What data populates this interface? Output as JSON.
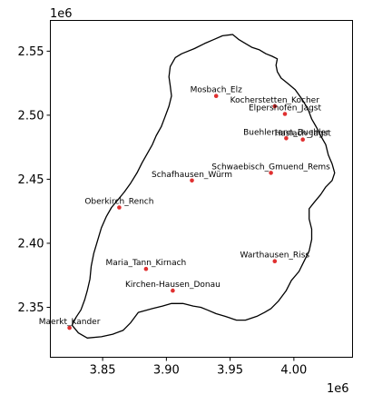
{
  "chart_data": {
    "type": "scatter",
    "title": "",
    "xlabel": "",
    "ylabel": "",
    "x_offset_label": "1e6",
    "y_offset_label": "1e6",
    "xlim": [
      3.809,
      4.046
    ],
    "ylim": [
      2.311,
      2.574
    ],
    "xticks": [
      3.85,
      3.9,
      3.95,
      4.0
    ],
    "xtick_labels": [
      "3.85",
      "3.90",
      "3.95",
      "4.00"
    ],
    "yticks": [
      2.35,
      2.4,
      2.45,
      2.5,
      2.55
    ],
    "ytick_labels": [
      "2.35",
      "2.40",
      "2.45",
      "2.50",
      "2.55"
    ],
    "grid": false,
    "point_color": "#e03030",
    "outline_color": "#000000",
    "points": [
      {
        "label": "Mosbach_Elz",
        "x": 3.939,
        "y": 2.515
      },
      {
        "label": "Kocherstetten_Kocher",
        "x": 3.985,
        "y": 2.507
      },
      {
        "label": "Elpershofen_Jagst",
        "x": 3.993,
        "y": 2.501
      },
      {
        "label": "Buehlertann_Buehler",
        "x": 3.994,
        "y": 2.482
      },
      {
        "label": "Haslach_Jagst",
        "x": 4.007,
        "y": 2.481
      },
      {
        "label": "Schwaebisch_Gmuend_Rems",
        "x": 3.982,
        "y": 2.455
      },
      {
        "label": "Schafhausen_Würm",
        "x": 3.92,
        "y": 2.449
      },
      {
        "label": "Oberkirch_Rench",
        "x": 3.863,
        "y": 2.428
      },
      {
        "label": "Warthausen_Riss",
        "x": 3.985,
        "y": 2.386
      },
      {
        "label": "Maria_Tann_Kirnach",
        "x": 3.884,
        "y": 2.38
      },
      {
        "label": "Kirchen-Hausen_Donau",
        "x": 3.905,
        "y": 2.363
      },
      {
        "label": "Maerkt_Kander",
        "x": 3.824,
        "y": 2.334
      }
    ],
    "outline": [
      [
        3.907,
        2.545
      ],
      [
        3.912,
        2.548
      ],
      [
        3.922,
        2.552
      ],
      [
        3.93,
        2.556
      ],
      [
        3.937,
        2.559
      ],
      [
        3.944,
        2.562
      ],
      [
        3.952,
        2.563
      ],
      [
        3.957,
        2.559
      ],
      [
        3.962,
        2.556
      ],
      [
        3.967,
        2.553
      ],
      [
        3.973,
        2.551
      ],
      [
        3.978,
        2.548
      ],
      [
        3.983,
        2.546
      ],
      [
        3.987,
        2.544
      ],
      [
        3.986,
        2.539
      ],
      [
        3.987,
        2.534
      ],
      [
        3.99,
        2.529
      ],
      [
        3.995,
        2.525
      ],
      [
        4.001,
        2.52
      ],
      [
        4.006,
        2.513
      ],
      [
        4.011,
        2.505
      ],
      [
        4.014,
        2.497
      ],
      [
        4.018,
        2.49
      ],
      [
        4.021,
        2.484
      ],
      [
        4.025,
        2.477
      ],
      [
        4.027,
        2.469
      ],
      [
        4.03,
        2.462
      ],
      [
        4.032,
        2.455
      ],
      [
        4.03,
        2.449
      ],
      [
        4.025,
        2.444
      ],
      [
        4.021,
        2.438
      ],
      [
        4.016,
        2.432
      ],
      [
        4.012,
        2.427
      ],
      [
        4.012,
        2.419
      ],
      [
        4.014,
        2.411
      ],
      [
        4.014,
        2.403
      ],
      [
        4.012,
        2.394
      ],
      [
        4.008,
        2.386
      ],
      [
        4.004,
        2.378
      ],
      [
        3.998,
        2.371
      ],
      [
        3.994,
        2.363
      ],
      [
        3.988,
        2.355
      ],
      [
        3.982,
        2.349
      ],
      [
        3.977,
        2.346
      ],
      [
        3.971,
        2.343
      ],
      [
        3.962,
        2.34
      ],
      [
        3.955,
        2.34
      ],
      [
        3.946,
        2.343
      ],
      [
        3.939,
        2.345
      ],
      [
        3.932,
        2.348
      ],
      [
        3.927,
        2.35
      ],
      [
        3.921,
        2.351
      ],
      [
        3.913,
        2.353
      ],
      [
        3.904,
        2.353
      ],
      [
        3.897,
        2.351
      ],
      [
        3.889,
        2.349
      ],
      [
        3.878,
        2.346
      ],
      [
        3.872,
        2.338
      ],
      [
        3.866,
        2.332
      ],
      [
        3.858,
        2.329
      ],
      [
        3.849,
        2.327
      ],
      [
        3.838,
        2.326
      ],
      [
        3.831,
        2.33
      ],
      [
        3.826,
        2.336
      ],
      [
        3.829,
        2.342
      ],
      [
        3.833,
        2.348
      ],
      [
        3.836,
        2.356
      ],
      [
        3.838,
        2.363
      ],
      [
        3.84,
        2.372
      ],
      [
        3.841,
        2.382
      ],
      [
        3.843,
        2.392
      ],
      [
        3.846,
        2.402
      ],
      [
        3.849,
        2.412
      ],
      [
        3.853,
        2.421
      ],
      [
        3.857,
        2.428
      ],
      [
        3.862,
        2.434
      ],
      [
        3.867,
        2.44
      ],
      [
        3.872,
        2.447
      ],
      [
        3.877,
        2.455
      ],
      [
        3.881,
        2.463
      ],
      [
        3.885,
        2.47
      ],
      [
        3.889,
        2.477
      ],
      [
        3.892,
        2.484
      ],
      [
        3.896,
        2.491
      ],
      [
        3.899,
        2.499
      ],
      [
        3.902,
        2.507
      ],
      [
        3.904,
        2.515
      ],
      [
        3.903,
        2.523
      ],
      [
        3.902,
        2.53
      ],
      [
        3.903,
        2.538
      ],
      [
        3.907,
        2.545
      ]
    ]
  }
}
